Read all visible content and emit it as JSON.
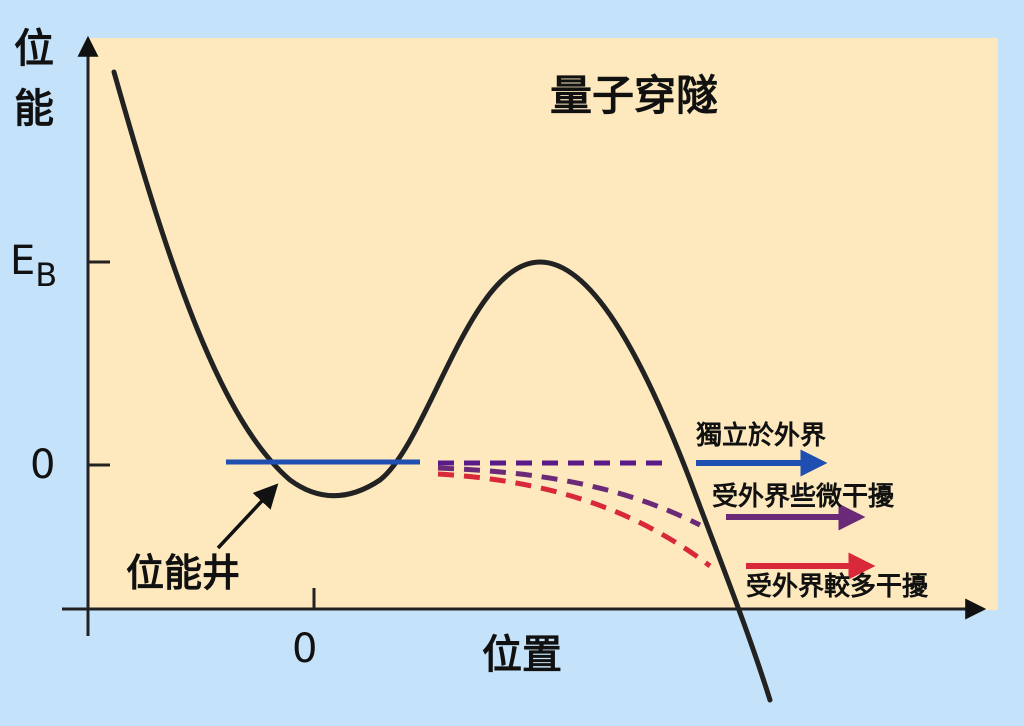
{
  "diagram": {
    "title": "量子穿隧",
    "y_axis_label": [
      "位",
      "能"
    ],
    "x_axis_label": "位置",
    "y_tick_eb_main": "E",
    "y_tick_eb_sub": "B",
    "y_tick_zero": "0",
    "x_tick_zero": "0",
    "well_label": "位能井",
    "legend": [
      {
        "text": "獨立於外界",
        "color": "#1f4fb0"
      },
      {
        "text": "受外界些微干擾",
        "color": "#6a2a78"
      },
      {
        "text": "受外界較多干擾",
        "color": "#d8283a"
      }
    ],
    "colors": {
      "background": "#c4e2f9",
      "plot_area": "#fde9bd",
      "curve": "#222222",
      "energy_level": "#1f4fb0",
      "dash_purple": "#5a1a8a"
    }
  }
}
